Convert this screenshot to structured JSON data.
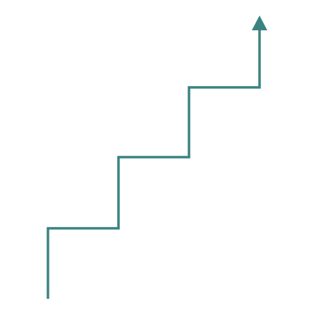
{
  "figure": {
    "icon": "step-up-arrow-icon",
    "stroke_color": "#3a8382",
    "background_color": "#ffffff",
    "steps": 3,
    "direction": "up"
  }
}
